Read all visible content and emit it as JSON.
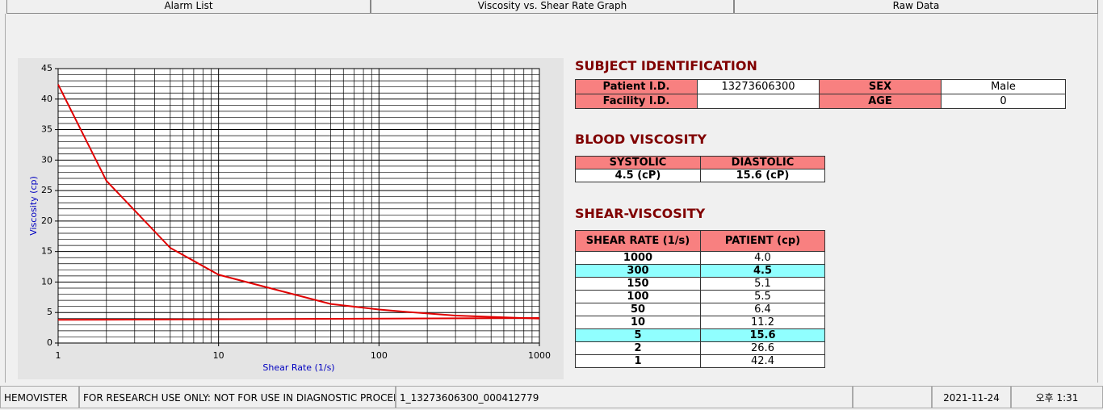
{
  "tabs": [
    "Alarm List",
    "Viscosity vs. Shear Rate Graph",
    "Raw Data"
  ],
  "active_tab": 1,
  "chart_data": {
    "type": "line",
    "xlabel": "Shear Rate (1/s)",
    "ylabel": "Viscosity (cp)",
    "xscale": "log",
    "xlim": [
      1,
      1000
    ],
    "xticks": [
      1,
      10,
      100,
      1000
    ],
    "x_minor_ticks": [
      2,
      3,
      4,
      5,
      6,
      7,
      8,
      9,
      20,
      30,
      40,
      50,
      60,
      70,
      80,
      90,
      200,
      300,
      400,
      500,
      600,
      700,
      800,
      900
    ],
    "ylim": [
      0,
      45
    ],
    "yticks": [
      0,
      5,
      10,
      15,
      20,
      25,
      30,
      35,
      40,
      45
    ],
    "y_minor_ticks": [
      1,
      2,
      3,
      4,
      6,
      7,
      8,
      9,
      11,
      12,
      13,
      14,
      16,
      17,
      18,
      19,
      21,
      22,
      23,
      24,
      26,
      27,
      28,
      29,
      31,
      32,
      33,
      34,
      36,
      37,
      38,
      39,
      41,
      42,
      43,
      44
    ],
    "grid": true,
    "series": [
      {
        "color": "#e00000",
        "x": [
          1,
          2,
          5,
          10,
          50,
          100,
          150,
          300,
          1000
        ],
        "values": [
          42.4,
          26.6,
          15.6,
          11.2,
          6.4,
          5.5,
          5.1,
          4.5,
          4.0
        ]
      },
      {
        "color": "#e00000",
        "x": [
          1,
          1000
        ],
        "values": [
          3.8,
          4.1
        ]
      }
    ]
  },
  "subject": {
    "title": "SUBJECT IDENTIFICATION",
    "patient_id_label": "Patient I.D.",
    "patient_id": "13273606300",
    "sex_label": "SEX",
    "sex": "Male",
    "facility_label": "Facility I.D.",
    "age_label": "AGE",
    "age": 0
  },
  "blood": {
    "title": "BLOOD VISCOSITY",
    "headers": [
      "SYSTOLIC",
      "DIASTOLIC"
    ],
    "values": [
      "4.5 (cP)",
      "15.6 (cP)"
    ]
  },
  "shear": {
    "title": "SHEAR-VISCOSITY",
    "headers": [
      "SHEAR RATE (1/s)",
      "PATIENT (cp)"
    ],
    "rows": [
      [
        "1000",
        "4.0"
      ],
      [
        "300",
        "4.5"
      ],
      [
        "150",
        "5.1"
      ],
      [
        "100",
        "5.5"
      ],
      [
        "50",
        "6.4"
      ],
      [
        "10",
        "11.2"
      ],
      [
        "5",
        "15.6"
      ],
      [
        "2",
        "26.6"
      ],
      [
        "1",
        "42.4"
      ]
    ],
    "highlight_rows": [
      1,
      6
    ]
  },
  "status": [
    "HEMOVISTER",
    "FOR RESEARCH USE ONLY: NOT FOR USE IN DIAGNOSTIC PROCEDURES",
    "1_13273606300_000412779",
    "2021-11-24",
    "오후 1:31"
  ]
}
